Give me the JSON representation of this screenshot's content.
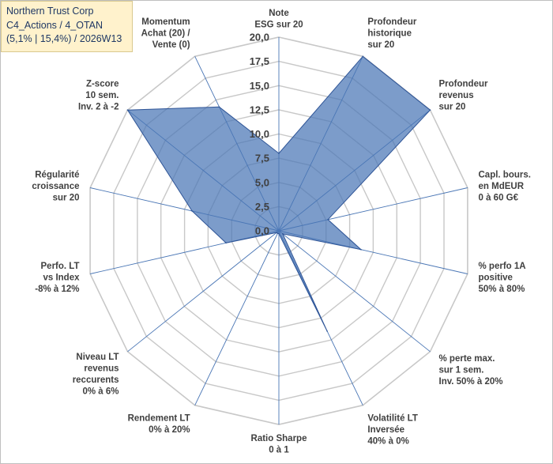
{
  "title": {
    "line1": "Northern Trust Corp",
    "line2": "C4_Actions / 4_OTAN",
    "line3": "(5,1% | 15,4%) / 2026W13"
  },
  "chart_data": {
    "type": "radar",
    "ylim": [
      0,
      20
    ],
    "ticks": [
      "0,0",
      "2,5",
      "5,0",
      "7,5",
      "10,0",
      "12,5",
      "15,0",
      "17,5",
      "20,0"
    ],
    "tick_values": [
      0,
      2.5,
      5,
      7.5,
      10,
      12.5,
      15,
      17.5,
      20
    ],
    "series_color": "#4a76b5",
    "axes": [
      {
        "label": [
          "Note",
          "ESG sur 20"
        ],
        "value": 8.0
      },
      {
        "label": [
          "Profondeur",
          "historique",
          "sur 20"
        ],
        "value": 20.0
      },
      {
        "label": [
          "Profondeur",
          "revenus",
          "sur 20"
        ],
        "value": 20.0
      },
      {
        "label": [
          "Capl. bours.",
          "en MdEUR",
          "0 à 60 G€"
        ],
        "value": 5.2
      },
      {
        "label": [
          "% perfo 1A",
          "positive",
          "50% à 80%"
        ],
        "value": 8.7
      },
      {
        "label": [
          "% perte max.",
          "sur 1 sem.",
          "Inv. 50% à 20%"
        ],
        "value": 0.5
      },
      {
        "label": [
          "Volatilité LT",
          "Inversée",
          "40% à 0%"
        ],
        "value": 11.5
      },
      {
        "label": [
          "Ratio Sharpe",
          "0 à 1"
        ],
        "value": 0.3
      },
      {
        "label": [
          "Rendement LT",
          "0% à 20%"
        ],
        "value": 0.3
      },
      {
        "label": [
          "Niveau LT",
          "revenus",
          "reccurents",
          "0% à 6%"
        ],
        "value": 0.3
      },
      {
        "label": [
          "Perfo. LT",
          "vs Index",
          "-8% à 12%"
        ],
        "value": 5.6
      },
      {
        "label": [
          "Régularité",
          "croissance",
          "sur 20"
        ],
        "value": 9.2
      },
      {
        "label": [
          "Z-score",
          "10 sem.",
          "Inv. 2 à -2"
        ],
        "value": 20.0
      },
      {
        "label": [
          "Momentum",
          "Achat (20) /",
          "Vente (0)"
        ],
        "value": 14.2
      }
    ]
  }
}
